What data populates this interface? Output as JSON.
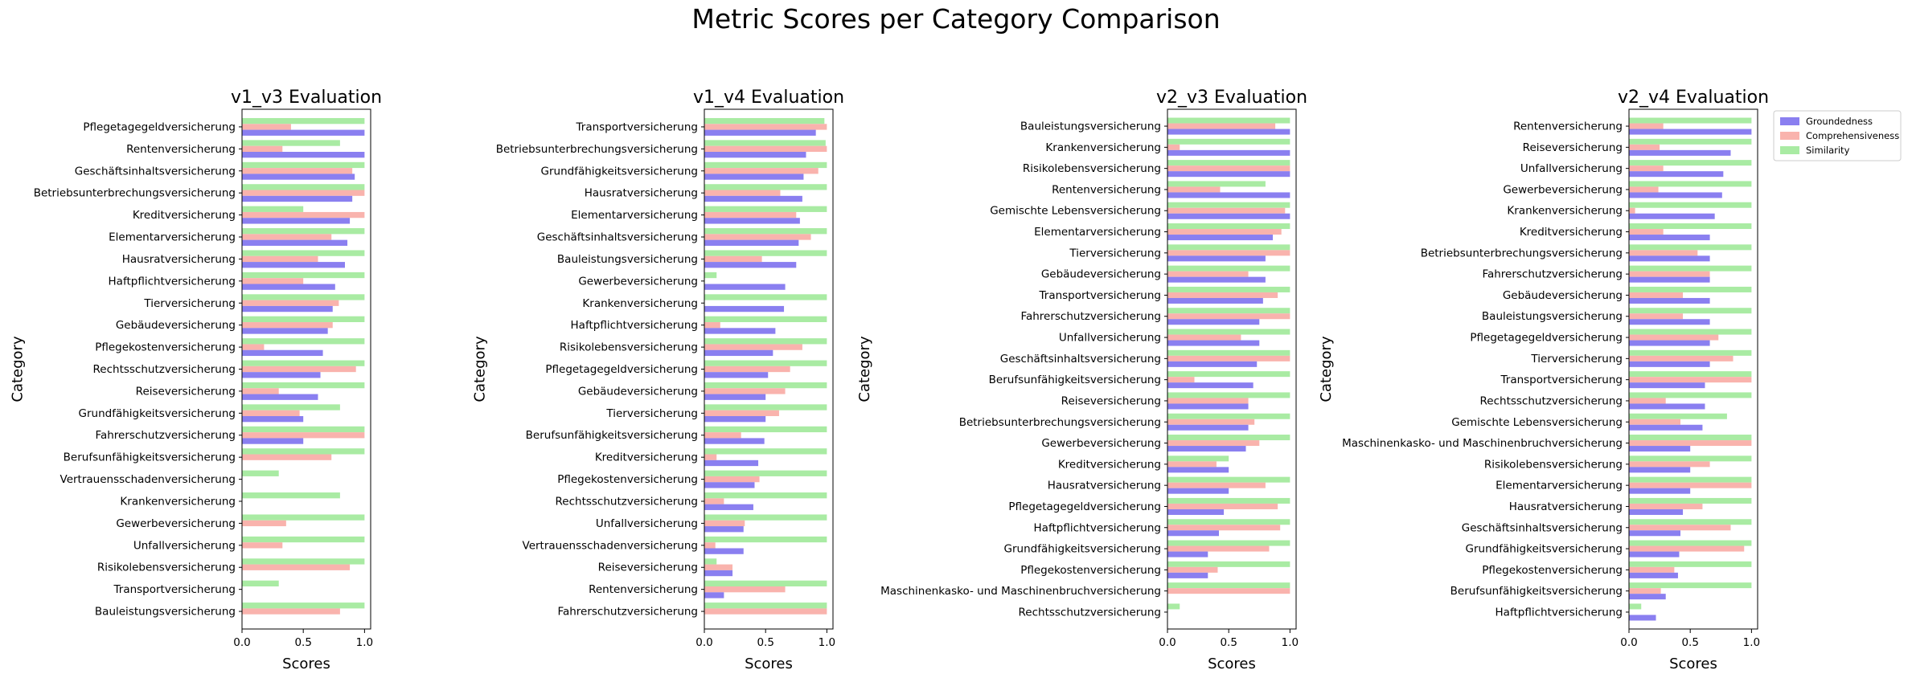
{
  "figure_title": "Metric Scores per Category Comparison",
  "colors": {
    "Groundedness": "#8a7ff0",
    "Comprehensiveness": "#f9b3ad",
    "Similarity": "#a9eba3"
  },
  "legend": {
    "placement": "top-right",
    "items": [
      "Groundedness",
      "Comprehensiveness",
      "Similarity"
    ]
  },
  "chart_data": [
    {
      "type": "bar",
      "orientation": "horizontal",
      "title": "v1_v3 Evaluation",
      "xlabel": "Scores",
      "ylabel": "Category",
      "xlim": [
        0,
        1.05
      ],
      "xticks": [
        "0.0",
        "0.5",
        "1.0"
      ],
      "categories": [
        "Pflegetagegeldversicherung",
        "Rentenversicherung",
        "Geschäftsinhaltsversicherung",
        "Betriebsunterbrechungsversicherung",
        "Kreditversicherung",
        "Elementarversicherung",
        "Hausratversicherung",
        "Haftpflichtversicherung",
        "Tierversicherung",
        "Gebäudeversicherung",
        "Pflegekostenversicherung",
        "Rechtsschutzversicherung",
        "Reiseversicherung",
        "Grundfähigkeitsversicherung",
        "Fahrerschutzversicherung",
        "Berufsunfähigkeitsversicherung",
        "Vertrauensschadenversicherung",
        "Krankenversicherung",
        "Gewerbeversicherung",
        "Unfallversicherung",
        "Risikolebensversicherung",
        "Transportversicherung",
        "Bauleistungsversicherung"
      ],
      "series": [
        {
          "name": "Groundedness",
          "values": [
            1.0,
            1.0,
            0.92,
            0.9,
            0.88,
            0.86,
            0.84,
            0.76,
            0.74,
            0.7,
            0.66,
            0.64,
            0.62,
            0.5,
            0.5,
            0,
            0,
            0,
            0,
            0,
            0,
            0,
            0
          ]
        },
        {
          "name": "Comprehensiveness",
          "values": [
            0.4,
            0.33,
            0.9,
            1.0,
            1.0,
            0.73,
            0.62,
            0.5,
            0.79,
            0.74,
            0.18,
            0.93,
            0.3,
            0.47,
            1.0,
            0.73,
            0,
            0,
            0.36,
            0.33,
            0.88,
            0,
            0.8
          ]
        },
        {
          "name": "Similarity",
          "values": [
            1.0,
            0.8,
            1.0,
            1.0,
            0.5,
            1.0,
            1.0,
            1.0,
            1.0,
            1.0,
            1.0,
            1.0,
            1.0,
            0.8,
            1.0,
            1.0,
            0.3,
            0.8,
            1.0,
            1.0,
            1.0,
            0.3,
            1.0
          ]
        }
      ]
    },
    {
      "type": "bar",
      "orientation": "horizontal",
      "title": "v1_v4 Evaluation",
      "xlabel": "Scores",
      "ylabel": "Category",
      "xlim": [
        0,
        1.05
      ],
      "xticks": [
        "0.0",
        "0.5",
        "1.0"
      ],
      "categories": [
        "Transportversicherung",
        "Betriebsunterbrechungsversicherung",
        "Grundfähigkeitsversicherung",
        "Hausratversicherung",
        "Elementarversicherung",
        "Geschäftsinhaltsversicherung",
        "Bauleistungsversicherung",
        "Gewerbeversicherung",
        "Krankenversicherung",
        "Haftpflichtversicherung",
        "Risikolebensversicherung",
        "Pflegetagegeldversicherung",
        "Gebäudeversicherung",
        "Tierversicherung",
        "Berufsunfähigkeitsversicherung",
        "Kreditversicherung",
        "Pflegekostenversicherung",
        "Rechtsschutzversicherung",
        "Unfallversicherung",
        "Vertrauensschadenversicherung",
        "Reiseversicherung",
        "Rentenversicherung",
        "Fahrerschutzversicherung"
      ],
      "series": [
        {
          "name": "Groundedness",
          "values": [
            0.91,
            0.83,
            0.81,
            0.8,
            0.78,
            0.77,
            0.75,
            0.66,
            0.65,
            0.58,
            0.56,
            0.52,
            0.5,
            0.5,
            0.49,
            0.44,
            0.41,
            0.4,
            0.32,
            0.32,
            0.23,
            0.16,
            0
          ]
        },
        {
          "name": "Comprehensiveness",
          "values": [
            1.0,
            1.0,
            0.93,
            0.62,
            0.75,
            0.87,
            0.47,
            0,
            0,
            0.13,
            0.8,
            0.7,
            0.66,
            0.61,
            0.3,
            0.1,
            0.45,
            0.16,
            0.33,
            0.09,
            0.23,
            0.66,
            1.0
          ]
        },
        {
          "name": "Similarity",
          "values": [
            0.98,
            0.99,
            1.0,
            1.0,
            1.0,
            1.0,
            1.0,
            0.1,
            1.0,
            1.0,
            1.0,
            1.0,
            1.0,
            1.0,
            1.0,
            1.0,
            1.0,
            1.0,
            1.0,
            1.0,
            0.1,
            1.0,
            1.0
          ]
        }
      ]
    },
    {
      "type": "bar",
      "orientation": "horizontal",
      "title": "v2_v3 Evaluation",
      "xlabel": "Scores",
      "ylabel": "Category",
      "xlim": [
        0,
        1.05
      ],
      "xticks": [
        "0.0",
        "0.5",
        "1.0"
      ],
      "categories": [
        "Bauleistungsversicherung",
        "Krankenversicherung",
        "Risikolebensversicherung",
        "Rentenversicherung",
        "Gemischte Lebensversicherung",
        "Elementarversicherung",
        "Tierversicherung",
        "Gebäudeversicherung",
        "Transportversicherung",
        "Fahrerschutzversicherung",
        "Unfallversicherung",
        "Geschäftsinhaltsversicherung",
        "Berufsunfähigkeitsversicherung",
        "Reiseversicherung",
        "Betriebsunterbrechungsversicherung",
        "Gewerbeversicherung",
        "Kreditversicherung",
        "Hausratversicherung",
        "Pflegetagegeldversicherung",
        "Haftpflichtversicherung",
        "Grundfähigkeitsversicherung",
        "Pflegekostenversicherung",
        "Maschinenkasko- und Maschinenbruchversicherung",
        "Rechtsschutzversicherung"
      ],
      "series": [
        {
          "name": "Groundedness",
          "values": [
            1.0,
            1.0,
            1.0,
            1.0,
            1.0,
            0.86,
            0.8,
            0.8,
            0.78,
            0.75,
            0.75,
            0.73,
            0.7,
            0.66,
            0.66,
            0.64,
            0.5,
            0.5,
            0.46,
            0.42,
            0.33,
            0.33,
            0,
            0
          ]
        },
        {
          "name": "Comprehensiveness",
          "values": [
            0.88,
            0.1,
            1.0,
            0.43,
            0.96,
            0.93,
            1.0,
            0.66,
            0.9,
            1.0,
            0.6,
            1.0,
            0.22,
            0.66,
            0.71,
            0.75,
            0.4,
            0.8,
            0.9,
            0.92,
            0.83,
            0.41,
            1.0,
            0
          ]
        },
        {
          "name": "Similarity",
          "values": [
            1.0,
            1.0,
            1.0,
            0.8,
            1.0,
            1.0,
            1.0,
            1.0,
            1.0,
            1.0,
            1.0,
            1.0,
            1.0,
            1.0,
            1.0,
            1.0,
            0.5,
            1.0,
            1.0,
            1.0,
            1.0,
            1.0,
            1.0,
            0.1
          ]
        }
      ]
    },
    {
      "type": "bar",
      "orientation": "horizontal",
      "title": "v2_v4 Evaluation",
      "xlabel": "Scores",
      "ylabel": "Category",
      "xlim": [
        0,
        1.05
      ],
      "xticks": [
        "0.0",
        "0.5",
        "1.0"
      ],
      "categories": [
        "Rentenversicherung",
        "Reiseversicherung",
        "Unfallversicherung",
        "Gewerbeversicherung",
        "Krankenversicherung",
        "Kreditversicherung",
        "Betriebsunterbrechungsversicherung",
        "Fahrerschutzversicherung",
        "Gebäudeversicherung",
        "Bauleistungsversicherung",
        "Pflegetagegeldversicherung",
        "Tierversicherung",
        "Transportversicherung",
        "Rechtsschutzversicherung",
        "Gemischte Lebensversicherung",
        "Maschinenkasko- und Maschinenbruchversicherung",
        "Risikolebensversicherung",
        "Elementarversicherung",
        "Hausratversicherung",
        "Geschäftsinhaltsversicherung",
        "Grundfähigkeitsversicherung",
        "Pflegekostenversicherung",
        "Berufsunfähigkeitsversicherung",
        "Haftpflichtversicherung"
      ],
      "series": [
        {
          "name": "Groundedness",
          "values": [
            1.0,
            0.83,
            0.77,
            0.76,
            0.7,
            0.66,
            0.66,
            0.66,
            0.66,
            0.66,
            0.66,
            0.66,
            0.62,
            0.62,
            0.6,
            0.5,
            0.5,
            0.5,
            0.44,
            0.42,
            0.41,
            0.4,
            0.3,
            0.22
          ]
        },
        {
          "name": "Comprehensiveness",
          "values": [
            0.28,
            0.25,
            0.28,
            0.24,
            0.05,
            0.28,
            0.56,
            0.66,
            0.44,
            0.44,
            0.73,
            0.85,
            1.0,
            0.3,
            0.42,
            1.0,
            0.66,
            1.0,
            0.6,
            0.83,
            0.94,
            0.37,
            0.26,
            0
          ]
        },
        {
          "name": "Similarity",
          "values": [
            1.0,
            1.0,
            1.0,
            1.0,
            1.0,
            1.0,
            1.0,
            1.0,
            1.0,
            1.0,
            1.0,
            1.0,
            1.0,
            1.0,
            0.8,
            1.0,
            1.0,
            1.0,
            1.0,
            1.0,
            1.0,
            1.0,
            1.0,
            0.1
          ]
        }
      ]
    }
  ]
}
